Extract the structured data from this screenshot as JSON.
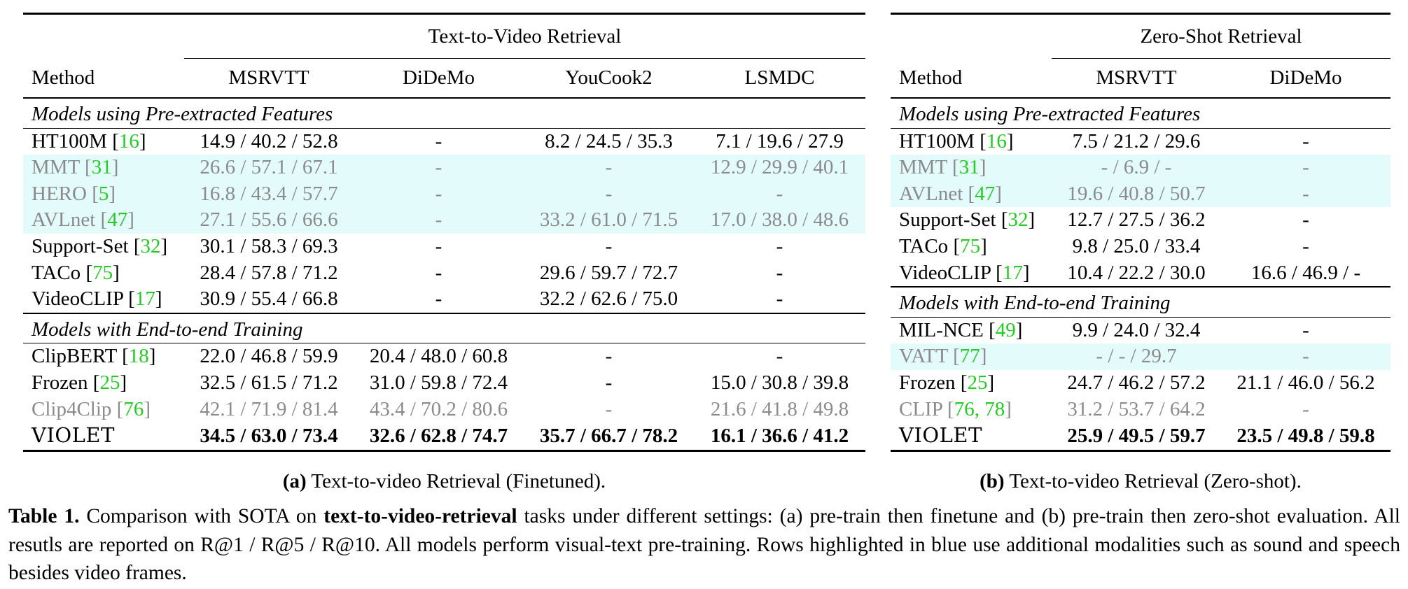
{
  "panel_a": {
    "task_header": "Text-to-Video Retrieval",
    "method_header": "Method",
    "columns": [
      "MSRVTT",
      "DiDeMo",
      "YouCook2",
      "LSMDC"
    ],
    "section1_title": "Models using Pre-extracted Features",
    "section1_rows": [
      {
        "name": "HT100M",
        "ref": "16",
        "highlight": false,
        "values": [
          "14.9 / 40.2 / 52.8",
          "-",
          "8.2 / 24.5 / 35.3",
          "7.1 / 19.6 / 27.9"
        ]
      },
      {
        "name": "MMT",
        "ref": "31",
        "highlight": true,
        "values": [
          "26.6 / 57.1 / 67.1",
          "-",
          "-",
          "12.9 / 29.9 / 40.1"
        ]
      },
      {
        "name": "HERO",
        "ref": "5",
        "highlight": true,
        "values": [
          "16.8 / 43.4 / 57.7",
          "-",
          "-",
          "-"
        ]
      },
      {
        "name": "AVLnet",
        "ref": "47",
        "highlight": true,
        "values": [
          "27.1 / 55.6 / 66.6",
          "-",
          "33.2 / 61.0 / 71.5",
          "17.0 / 38.0 / 48.6"
        ]
      },
      {
        "name": "Support-Set",
        "ref": "32",
        "highlight": false,
        "values": [
          "30.1 / 58.3 / 69.3",
          "-",
          "-",
          "-"
        ]
      },
      {
        "name": "TACo",
        "ref": "75",
        "highlight": false,
        "values": [
          "28.4 / 57.8 / 71.2",
          "-",
          "29.6 / 59.7 / 72.7",
          "-"
        ]
      },
      {
        "name": "VideoCLIP",
        "ref": "17",
        "highlight": false,
        "values": [
          "30.9 / 55.4 / 66.8",
          "-",
          "32.2 / 62.6 / 75.0",
          "-"
        ]
      }
    ],
    "section2_title": "Models with End-to-end Training",
    "section2_rows": [
      {
        "name": "ClipBERT",
        "ref": "18",
        "highlight": false,
        "values": [
          "22.0 / 46.8 / 59.9",
          "20.4 / 48.0 / 60.8",
          "-",
          "-"
        ]
      },
      {
        "name": "Frozen",
        "ref": "25",
        "highlight": false,
        "values": [
          "32.5 / 61.5 / 71.2",
          "31.0 / 59.8 / 72.4",
          "-",
          "15.0 / 30.8 / 39.8"
        ]
      },
      {
        "name": "Clip4Clip",
        "ref": "76",
        "highlight": false,
        "gray": true,
        "values": [
          "42.1 / 71.9 / 81.4",
          "43.4 / 70.2 / 80.6",
          "-",
          "21.6 / 41.8 / 49.8"
        ]
      }
    ],
    "final_row": {
      "name": "VIOLET",
      "values": [
        "34.5 / 63.0 / 73.4",
        "32.6 / 62.8 / 74.7",
        "35.7 / 66.7 / 78.2",
        "16.1 / 36.6 / 41.2"
      ]
    },
    "caption_label": "(a)",
    "caption_text": " Text-to-video Retrieval (Finetuned)."
  },
  "panel_b": {
    "task_header": "Zero-Shot Retrieval",
    "method_header": "Method",
    "columns": [
      "MSRVTT",
      "DiDeMo"
    ],
    "section1_title": "Models using Pre-extracted Features",
    "section1_rows": [
      {
        "name": "HT100M",
        "ref": "16",
        "highlight": false,
        "values": [
          "7.5 / 21.2 / 29.6",
          "-"
        ]
      },
      {
        "name": "MMT",
        "ref": "31",
        "highlight": true,
        "values": [
          "-  /  6.9 /  -",
          "-"
        ]
      },
      {
        "name": "AVLnet",
        "ref": "47",
        "highlight": true,
        "values": [
          "19.6 / 40.8 / 50.7",
          "-"
        ]
      },
      {
        "name": "Support-Set",
        "ref": "32",
        "highlight": false,
        "values": [
          "12.7 / 27.5 / 36.2",
          "-"
        ]
      },
      {
        "name": "TACo",
        "ref": "75",
        "highlight": false,
        "values": [
          "9.8 / 25.0 / 33.4",
          "-"
        ]
      },
      {
        "name": "VideoCLIP",
        "ref": "17",
        "highlight": false,
        "values": [
          "10.4 / 22.2 / 30.0",
          "16.6 / 46.9 / -"
        ]
      }
    ],
    "section2_title": "Models with End-to-end Training",
    "section2_rows": [
      {
        "name": "MIL-NCE",
        "ref": "49",
        "highlight": false,
        "values": [
          "9.9 / 24.0 / 32.4",
          "-"
        ]
      },
      {
        "name": "VATT",
        "ref": "77",
        "highlight": true,
        "values": [
          "-  /   -  / 29.7",
          "-"
        ]
      },
      {
        "name": "Frozen",
        "ref": "25",
        "highlight": false,
        "values": [
          "24.7 / 46.2 / 57.2",
          "21.1 / 46.0 / 56.2"
        ]
      },
      {
        "name": "CLIP",
        "ref": "76, 78",
        "highlight": false,
        "gray": true,
        "values": [
          "31.2 / 53.7 / 64.2",
          "-"
        ]
      }
    ],
    "final_row": {
      "name": "VIOLET",
      "values": [
        "25.9 / 49.5 / 59.7",
        "23.5 / 49.8 / 59.8"
      ]
    },
    "caption_label": "(b)",
    "caption_text": " Text-to-video Retrieval (Zero-shot)."
  },
  "caption": {
    "label": "Table 1.",
    "part1": " Comparison with SOTA on ",
    "bold": "text-to-video-retrieval",
    "part2": " tasks under different settings: (a) pre-train then finetune and (b) pre-train then zero-shot evaluation.  All resutls are reported on R@1 / R@5 / R@10.  All models perform visual-text pre-training.  Rows highlighted in blue use additional modalities such as sound and speech besides video frames."
  },
  "colors": {
    "highlight_bg": "#e4fbfb",
    "ref_green": "#22cc22",
    "gray_text": "#8b8b8b"
  }
}
